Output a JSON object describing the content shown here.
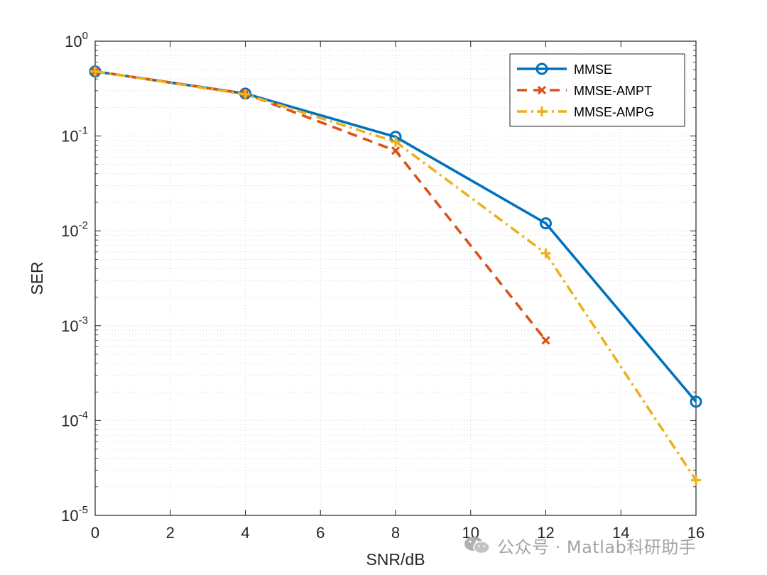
{
  "chart_data": {
    "type": "line",
    "yscale": "log",
    "xlabel": "SNR/dB",
    "ylabel": "SER",
    "xlim": [
      0,
      16
    ],
    "ylim": [
      1e-05,
      1
    ],
    "xticks": [
      "0",
      "2",
      "4",
      "6",
      "8",
      "10",
      "12",
      "14",
      "16"
    ],
    "yticks": [
      {
        "base": "10",
        "exp": "0"
      },
      {
        "base": "10",
        "exp": "-1"
      },
      {
        "base": "10",
        "exp": "-2"
      },
      {
        "base": "10",
        "exp": "-3"
      },
      {
        "base": "10",
        "exp": "-4"
      },
      {
        "base": "10",
        "exp": "-5"
      }
    ],
    "grid": true,
    "legend_position": "top-right",
    "series": [
      {
        "name": "MMSE",
        "color": "#0072BD",
        "linestyle": "solid",
        "marker": "circle",
        "x": [
          0,
          4,
          8,
          12,
          16
        ],
        "values": [
          0.48,
          0.28,
          0.098,
          0.012,
          0.000158
        ]
      },
      {
        "name": "MMSE-AMPT",
        "color": "#D95319",
        "linestyle": "dashed",
        "marker": "x",
        "x": [
          0,
          4,
          8,
          12
        ],
        "values": [
          0.48,
          0.28,
          0.07,
          0.0007
        ]
      },
      {
        "name": "MMSE-AMPG",
        "color": "#EDB120",
        "linestyle": "dashdot",
        "marker": "plus",
        "x": [
          0,
          4,
          8,
          12,
          16
        ],
        "values": [
          0.48,
          0.275,
          0.087,
          0.0058,
          2.35e-05
        ]
      }
    ]
  },
  "watermark": {
    "text": "公众号 · Matlab科研助手",
    "icon": "wechat-icon"
  }
}
